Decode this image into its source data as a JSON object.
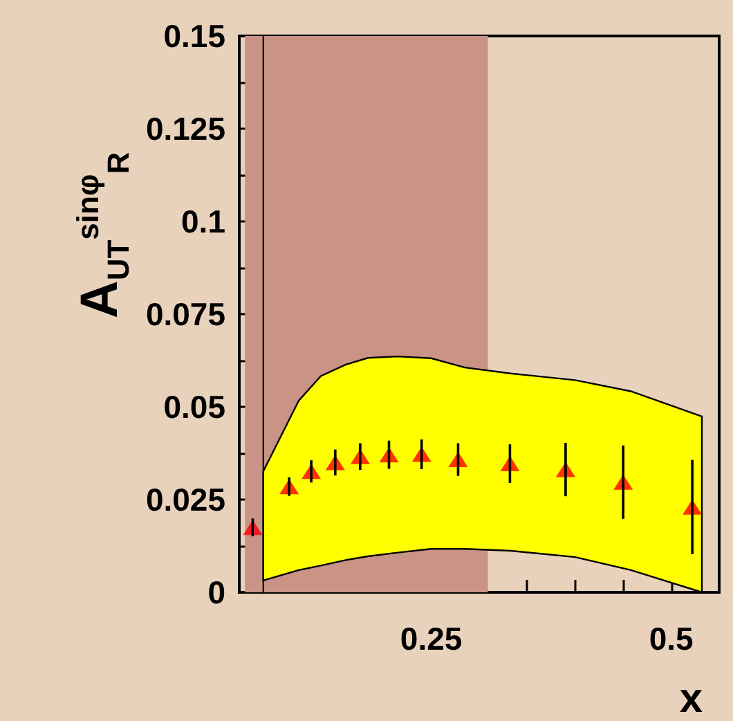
{
  "chart_data": {
    "type": "scatter",
    "xlabel": "x",
    "ylabel": "A$_{UT}$$^{sinφ}$$_{R}$",
    "xlim": [
      0.05,
      0.55
    ],
    "xticks": [
      {
        "value": 0.1,
        "label": null
      },
      {
        "value": 0.15,
        "label": null
      },
      {
        "value": 0.2,
        "label": null
      },
      0.25,
      {
        "value": 0.3,
        "label": null
      },
      {
        "value": 0.35,
        "label": null
      },
      {
        "value": 0.4,
        "label": null
      },
      {
        "value": 0.45,
        "label": null
      },
      0.5
    ],
    "ylim": [
      0,
      0.15
    ],
    "yticks": [
      0,
      {
        "value": 0.0125,
        "label": null
      },
      0.025,
      {
        "value": 0.0375,
        "label": null
      },
      0.05,
      {
        "value": 0.0625,
        "label": null
      },
      0.075,
      {
        "value": 0.0875,
        "label": null
      },
      0.1,
      {
        "value": 0.1125,
        "label": null
      },
      0.125,
      {
        "value": 0.1375,
        "label": null
      },
      0.15
    ],
    "grid": false,
    "marker": "triangle",
    "bands": [
      {
        "axis": "x",
        "from": 0.056,
        "to": 0.309,
        "color": "#c99385"
      }
    ],
    "ref_lines": [
      {
        "axis": "x",
        "value": 0.075,
        "color": "#000000"
      }
    ],
    "series": [
      {
        "type": "line",
        "color": "#ffff00",
        "x": [
          0.075,
          0.112,
          0.135,
          0.161,
          0.184,
          0.215,
          0.25,
          0.285,
          0.333,
          0.4,
          0.458,
          0.532
        ],
        "values": [
          null,
          null,
          null,
          null,
          null,
          null,
          null,
          null,
          null,
          null,
          null,
          null
        ],
        "upper": [
          0.0326,
          0.0517,
          0.0583,
          0.0614,
          0.0632,
          0.0636,
          0.0631,
          0.0606,
          0.059,
          0.0572,
          0.0542,
          0.0474
        ],
        "lower": [
          0.0032,
          0.006,
          0.0072,
          0.0087,
          0.0097,
          0.0107,
          0.0117,
          0.0117,
          0.0112,
          0.0095,
          0.006,
          0
        ]
      },
      {
        "color": "#ff0000",
        "x": [
          0.064,
          0.102,
          0.125,
          0.15,
          0.176,
          0.206,
          0.24,
          0.278,
          0.332,
          0.39,
          0.45,
          0.522
        ],
        "values": [
          0.0175,
          0.0285,
          0.0326,
          0.035,
          0.0366,
          0.0371,
          0.0372,
          0.0358,
          0.0347,
          0.0331,
          0.0297,
          0.023
        ],
        "errors": [
          0.0024,
          0.0025,
          0.003,
          0.0035,
          0.0036,
          0.0038,
          0.004,
          0.0044,
          0.0052,
          0.0072,
          0.0099,
          0.0127
        ]
      }
    ]
  }
}
